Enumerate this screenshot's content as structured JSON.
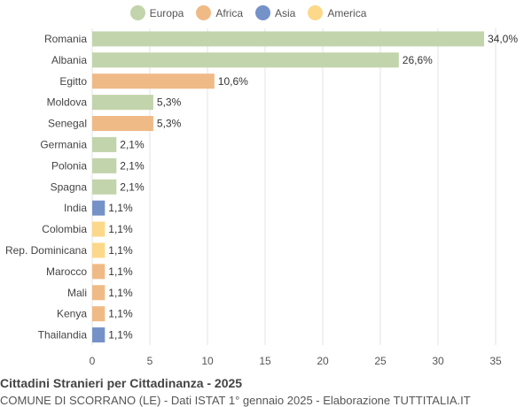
{
  "legend": [
    {
      "name": "Europa",
      "color": "#c2d4ac"
    },
    {
      "name": "Africa",
      "color": "#f0ba86"
    },
    {
      "name": "Asia",
      "color": "#7592c8"
    },
    {
      "name": "America",
      "color": "#fcd88a"
    }
  ],
  "chart_data": {
    "type": "bar",
    "orientation": "horizontal",
    "categories": [
      "Romania",
      "Albania",
      "Egitto",
      "Moldova",
      "Senegal",
      "Germania",
      "Polonia",
      "Spagna",
      "India",
      "Colombia",
      "Rep. Dominicana",
      "Marocco",
      "Mali",
      "Kenya",
      "Thailandia"
    ],
    "values": [
      34.0,
      26.6,
      10.6,
      5.3,
      5.3,
      2.1,
      2.1,
      2.1,
      1.1,
      1.1,
      1.1,
      1.1,
      1.1,
      1.1,
      1.1
    ],
    "value_labels": [
      "34,0%",
      "26,6%",
      "10,6%",
      "5,3%",
      "5,3%",
      "2,1%",
      "2,1%",
      "2,1%",
      "1,1%",
      "1,1%",
      "1,1%",
      "1,1%",
      "1,1%",
      "1,1%",
      "1,1%"
    ],
    "groups": [
      "Europa",
      "Europa",
      "Africa",
      "Europa",
      "Africa",
      "Europa",
      "Europa",
      "Europa",
      "Asia",
      "America",
      "America",
      "Africa",
      "Africa",
      "Africa",
      "Asia"
    ],
    "xlim": [
      0,
      35
    ],
    "xticks": [
      0,
      5,
      10,
      15,
      20,
      25,
      30,
      35
    ],
    "grid": true,
    "legend_position": "top"
  },
  "footer": {
    "title": "Cittadini Stranieri per Cittadinanza - 2025",
    "subtitle": "COMUNE DI SCORRANO (LE) - Dati ISTAT 1° gennaio 2025 - Elaborazione TUTTITALIA.IT"
  }
}
